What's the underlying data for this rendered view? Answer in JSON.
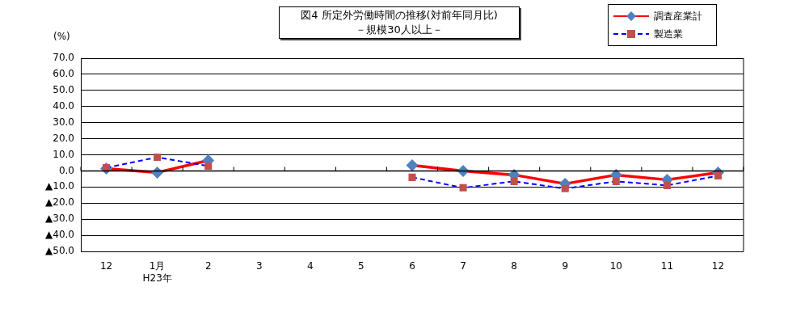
{
  "chart_data": {
    "type": "line",
    "title": "図4 所定外労働時間の推移(対前年同月比)",
    "subtitle": "－規模30人以上－",
    "ylabel": "(%)",
    "categories": [
      "12",
      "1月\nH23年",
      "2",
      "3",
      "4",
      "5",
      "6",
      "7",
      "8",
      "9",
      "10",
      "11",
      "12"
    ],
    "series": [
      {
        "name": "調査産業計",
        "color": "#ff0000",
        "marker": "diamond",
        "line_style": "solid",
        "values": [
          1.5,
          -1.0,
          6.5,
          null,
          null,
          null,
          3.5,
          0,
          -2.5,
          -8,
          -2.5,
          -5.5,
          -1
        ]
      },
      {
        "name": "製造業",
        "color": "#0000ff",
        "marker": "square",
        "line_style": "dashed",
        "values": [
          2,
          8.5,
          3,
          null,
          null,
          null,
          -4,
          -10.5,
          -6.5,
          -11,
          -6.5,
          -9,
          -3
        ]
      }
    ],
    "ylim": [
      -50,
      70
    ],
    "yticks": [
      {
        "value": 70,
        "label": "70.0"
      },
      {
        "value": 60,
        "label": "60.0"
      },
      {
        "value": 50,
        "label": "50.0"
      },
      {
        "value": 40,
        "label": "40.0"
      },
      {
        "value": 30,
        "label": "30.0"
      },
      {
        "value": 20,
        "label": "20.0"
      },
      {
        "value": 10,
        "label": "10.0"
      },
      {
        "value": 0,
        "label": "0.0"
      },
      {
        "value": -10,
        "label": "▲10.0"
      },
      {
        "value": -20,
        "label": "▲20.0"
      },
      {
        "value": -30,
        "label": "▲30.0"
      },
      {
        "value": -40,
        "label": "▲40.0"
      },
      {
        "value": -50,
        "label": "▲50.0"
      }
    ],
    "grid": "y",
    "legend": "top right"
  }
}
